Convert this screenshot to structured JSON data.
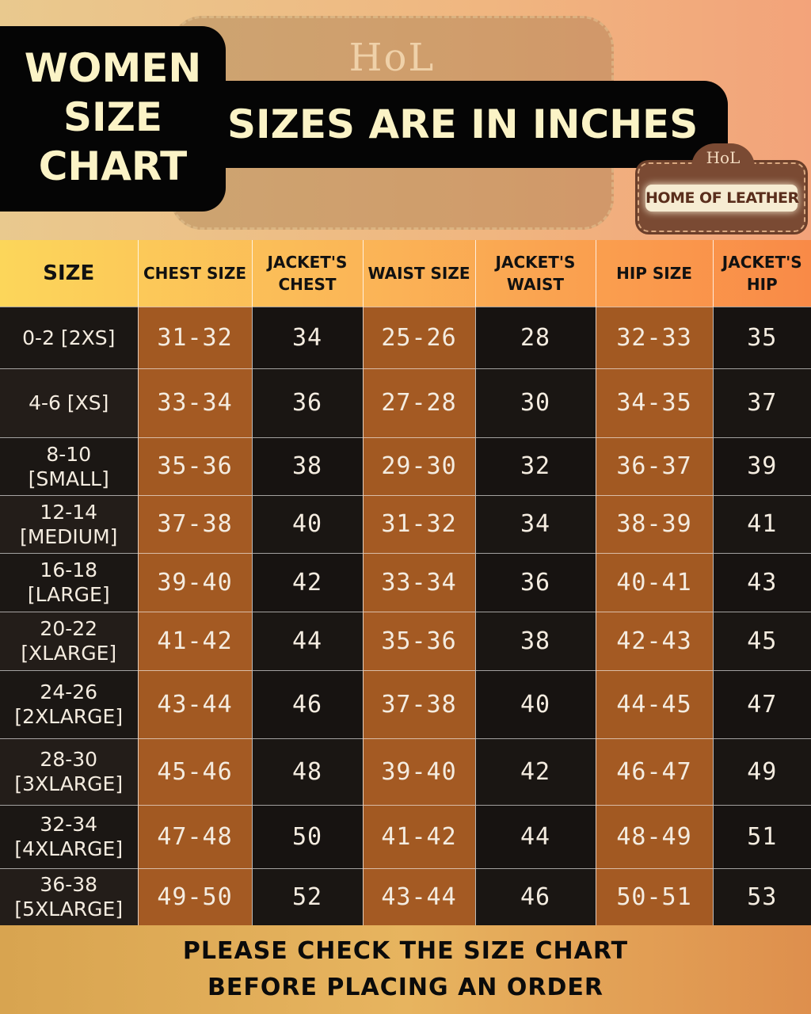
{
  "header": {
    "title_lines": [
      "WOMEN",
      "SIZE",
      "CHART"
    ],
    "subtitle": "SIZES ARE IN INCHES",
    "background_badge_text": "HoL"
  },
  "logo": {
    "monogram": "HoL",
    "name": "HOME OF LEATHER"
  },
  "table": {
    "columns": [
      "SIZE",
      "CHEST SIZE",
      "JACKET'S CHEST",
      "WAIST SIZE",
      "JACKET'S WAIST",
      "HIP SIZE",
      "JACKET'S HIP"
    ],
    "rows": [
      {
        "size": "0-2 [2XS]",
        "chest": "31-32",
        "jacket_chest": "34",
        "waist": "25-26",
        "jacket_waist": "28",
        "hip": "32-33",
        "jacket_hip": "35"
      },
      {
        "size": "4-6 [XS]",
        "chest": "33-34",
        "jacket_chest": "36",
        "waist": "27-28",
        "jacket_waist": "30",
        "hip": "34-35",
        "jacket_hip": "37"
      },
      {
        "size": "8-10 [SMALL]",
        "chest": "35-36",
        "jacket_chest": "38",
        "waist": "29-30",
        "jacket_waist": "32",
        "hip": "36-37",
        "jacket_hip": "39"
      },
      {
        "size": "12-14 [MEDIUM]",
        "chest": "37-38",
        "jacket_chest": "40",
        "waist": "31-32",
        "jacket_waist": "34",
        "hip": "38-39",
        "jacket_hip": "41"
      },
      {
        "size": "16-18 [LARGE]",
        "chest": "39-40",
        "jacket_chest": "42",
        "waist": "33-34",
        "jacket_waist": "36",
        "hip": "40-41",
        "jacket_hip": "43"
      },
      {
        "size": "20-22 [XLARGE]",
        "chest": "41-42",
        "jacket_chest": "44",
        "waist": "35-36",
        "jacket_waist": "38",
        "hip": "42-43",
        "jacket_hip": "45"
      },
      {
        "size": "24-26 [2XLARGE]",
        "chest": "43-44",
        "jacket_chest": "46",
        "waist": "37-38",
        "jacket_waist": "40",
        "hip": "44-45",
        "jacket_hip": "47"
      },
      {
        "size": "28-30 [3XLARGE]",
        "chest": "45-46",
        "jacket_chest": "48",
        "waist": "39-40",
        "jacket_waist": "42",
        "hip": "46-47",
        "jacket_hip": "49"
      },
      {
        "size": "32-34 [4XLARGE]",
        "chest": "47-48",
        "jacket_chest": "50",
        "waist": "41-42",
        "jacket_waist": "44",
        "hip": "48-49",
        "jacket_hip": "51"
      },
      {
        "size": "36-38 [5XLARGE]",
        "chest": "49-50",
        "jacket_chest": "52",
        "waist": "43-44",
        "jacket_waist": "46",
        "hip": "50-51",
        "jacket_hip": "53"
      }
    ]
  },
  "footer": {
    "lines": [
      "PLEASE CHECK THE SIZE CHART",
      "BEFORE PLACING AN ORDER"
    ]
  }
}
